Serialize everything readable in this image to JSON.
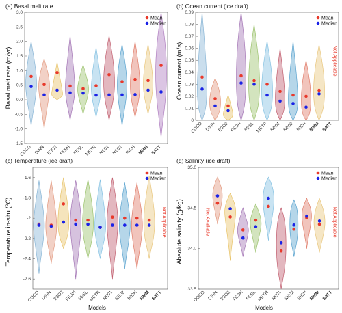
{
  "figure": {
    "xlabel": "Models",
    "legend": {
      "mean_label": "Mean",
      "median_label": "Median",
      "mean_color": "#e8392b",
      "median_color": "#1a22e6"
    },
    "colors": {
      "COCO": "#8ab6d6",
      "DINN": "#e39a80",
      "E3O2": "#e8c46a",
      "FESH": "#a577b6",
      "FESL": "#9dc36f",
      "METR": "#86c2e2",
      "NE01": "#c26070",
      "NE02": "#5aa3cf",
      "RICH": "#e07d6a",
      "MMM": "#e9c77e",
      "SATT": "#b07fc0"
    },
    "highlight_color": "#e8392b"
  },
  "chart_data": [
    {
      "type": "violin",
      "title": "(a) Basal melt rate",
      "ylabel": "Basal melt rate (m/yr)",
      "ylim": [
        -1.5,
        3.0
      ],
      "yticks": [
        "-1.5",
        "-1.0",
        "-0.5",
        "0.0",
        "0.5",
        "1.0",
        "1.5",
        "2.0",
        "2.5",
        "3.0"
      ],
      "categories": [
        "COCO",
        "DINN",
        "E3O2",
        "FESH",
        "FESL",
        "METR",
        "NE01",
        "NE02",
        "RICH",
        "MMM",
        "SATT"
      ],
      "bold_categories": [
        "MMM",
        "SATT"
      ],
      "mean": [
        0.8,
        0.52,
        0.93,
        0.47,
        0.38,
        0.48,
        0.86,
        0.62,
        0.7,
        0.66,
        1.18
      ],
      "median": [
        0.45,
        0.17,
        0.33,
        0.24,
        0.23,
        0.16,
        0.17,
        0.17,
        0.18,
        0.33,
        0.27
      ],
      "legend_position": "top-right"
    },
    {
      "type": "violin",
      "title": "(b) Ocean current (ice draft)",
      "ylabel": "Ocean current (m/s)",
      "ylim": [
        0,
        0.09
      ],
      "yticks": [
        "0",
        "0.01",
        "0.02",
        "0.03",
        "0.04",
        "0.05",
        "0.06",
        "0.07",
        "0.08",
        "0.09"
      ],
      "categories": [
        "COCO",
        "DINN",
        "E3O2",
        "FESH",
        "FESL",
        "METR",
        "NE01",
        "NE02",
        "RICH",
        "MMM",
        "SATT"
      ],
      "bold_categories": [
        "MMM",
        "SATT"
      ],
      "mean": [
        0.036,
        0.018,
        0.012,
        0.037,
        0.033,
        0.03,
        0.024,
        0.021,
        0.02,
        0.025,
        null
      ],
      "median": [
        0.026,
        0.012,
        0.008,
        0.031,
        0.03,
        0.021,
        0.016,
        0.014,
        0.011,
        0.022,
        null
      ],
      "not_applicable": {
        "category": "SATT",
        "text": "Not Applicable"
      },
      "legend_position": "top-right"
    },
    {
      "type": "violin",
      "title": "(c) Temperature (ice draft)",
      "ylabel": "Temperature in-situ (°C)",
      "ylim": [
        -2.7,
        -1.5
      ],
      "yticks": [
        "-2.6",
        "-2.4",
        "-2.2",
        "-2",
        "-1.8",
        "-1.6"
      ],
      "categories": [
        "COCO",
        "DINN",
        "E3O2",
        "FESH",
        "FESL",
        "METR",
        "NE01",
        "NE02",
        "RICH",
        "MMM",
        "SATT"
      ],
      "bold_categories": [
        "MMM",
        "SATT"
      ],
      "mean": [
        -2.06,
        -2.07,
        -1.86,
        -2.02,
        -2.02,
        -2.09,
        -1.99,
        -2.0,
        -2.0,
        -2.02,
        null
      ],
      "median": [
        -2.07,
        -2.08,
        -2.04,
        -2.06,
        -2.06,
        -2.09,
        -2.07,
        -2.07,
        -2.07,
        -2.07,
        null
      ],
      "not_applicable": {
        "category": "SATT",
        "text": "Not Applicable"
      },
      "legend_position": "top-right"
    },
    {
      "type": "violin",
      "title": "(d) Salinity (ice draft)",
      "ylabel": "Absolute salinity (g/kg)",
      "ylim": [
        33.5,
        35.0
      ],
      "yticks": [
        "33.5",
        "34.0",
        "34.5",
        "35.0"
      ],
      "categories": [
        "COCO",
        "DINN",
        "E3O2",
        "FESH",
        "FESL",
        "METR",
        "NE01",
        "NE02",
        "RICH",
        "MMM",
        "SATT"
      ],
      "bold_categories": [
        "MMM",
        "SATT"
      ],
      "mean": [
        null,
        34.56,
        34.39,
        34.23,
        34.35,
        34.52,
        33.97,
        34.24,
        34.38,
        34.3,
        null
      ],
      "median": [
        null,
        34.65,
        34.49,
        34.13,
        34.27,
        34.62,
        34.07,
        34.29,
        34.4,
        34.34,
        null
      ],
      "not_applicable": [
        {
          "category": "COCO",
          "text": "Not Available"
        },
        {
          "category": "SATT",
          "text": "Not Applicable"
        }
      ],
      "legend_position": "top-right"
    }
  ]
}
